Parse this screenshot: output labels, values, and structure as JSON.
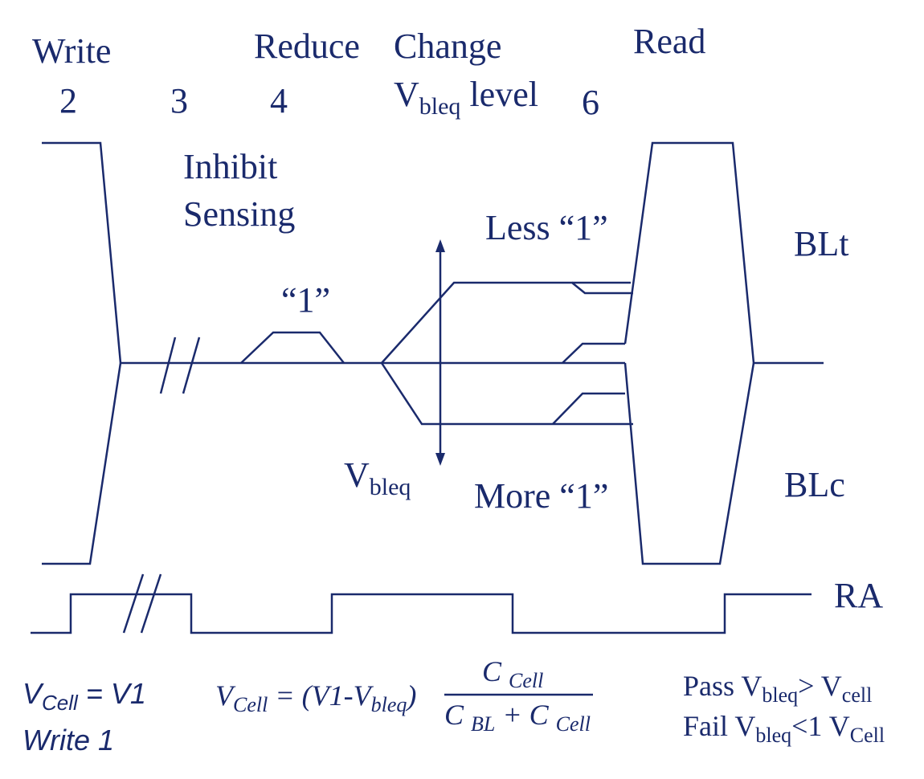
{
  "phases": {
    "write": "Write",
    "two": "2",
    "three": "3",
    "reduce": "Reduce",
    "four": "4",
    "change": "Change",
    "vbleq_level_v": "V",
    "vbleq_level_sub": "bleq",
    "vbleq_level_rest": "level",
    "six": "6",
    "read": "Read"
  },
  "annotations": {
    "inhibit": "Inhibit",
    "sensing": "Sensing",
    "one_quote": "“1”",
    "less_one": "Less “1”",
    "more_one": "More “1”",
    "vbleq_v": "V",
    "vbleq_sub": "bleq"
  },
  "signals": {
    "blt": "BLt",
    "blc": "BLc",
    "ra": "RA"
  },
  "footer": {
    "vcell_v": "V",
    "vcell_sub": "Cell",
    "vcell_eq": "= V1",
    "write1": "Write 1",
    "formula_lhs_v": "V",
    "formula_lhs_sub": "Cell",
    "formula_mid": "= (V1-V",
    "formula_mid_sub": "bleq",
    "formula_close": ")",
    "num": "C",
    "num_sub": "Cell",
    "den_c1": "C",
    "den_sub1": "BL",
    "den_plus": "+ C",
    "den_sub2": "Cell",
    "pass_word": "Pass V",
    "pass_sub": "bleq",
    "pass_gt": "> V",
    "pass_sub2": "cell",
    "fail_word": "Fail V",
    "fail_sub": "bleq",
    "fail_lt": "<1 V",
    "fail_sub2": "Cell"
  },
  "colors": {
    "ink": "#1a2a6c"
  }
}
